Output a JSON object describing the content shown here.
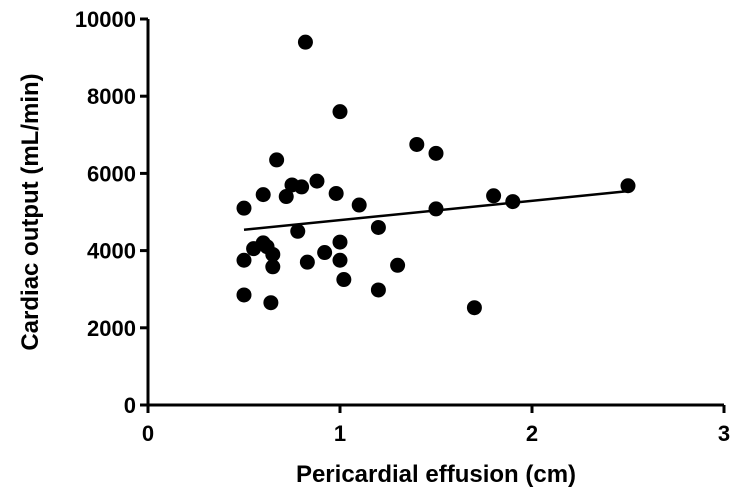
{
  "chart_data": {
    "type": "scatter",
    "title": "",
    "xlabel": "Pericardial effusion (cm)",
    "ylabel": "Cardiac output (mL/min)",
    "xlim": [
      0,
      3
    ],
    "ylim": [
      0,
      10000
    ],
    "xticks": [
      "0",
      "1",
      "2",
      "3"
    ],
    "yticks": [
      "0",
      "2000",
      "4000",
      "6000",
      "8000",
      "10000"
    ],
    "grid": false,
    "points": [
      {
        "x": 0.5,
        "y": 5100
      },
      {
        "x": 0.5,
        "y": 3750
      },
      {
        "x": 0.5,
        "y": 2850
      },
      {
        "x": 0.55,
        "y": 4050
      },
      {
        "x": 0.6,
        "y": 5450
      },
      {
        "x": 0.6,
        "y": 4200
      },
      {
        "x": 0.62,
        "y": 4100
      },
      {
        "x": 0.64,
        "y": 2650
      },
      {
        "x": 0.65,
        "y": 3900
      },
      {
        "x": 0.65,
        "y": 3580
      },
      {
        "x": 0.67,
        "y": 6350
      },
      {
        "x": 0.72,
        "y": 5400
      },
      {
        "x": 0.75,
        "y": 5700
      },
      {
        "x": 0.78,
        "y": 4500
      },
      {
        "x": 0.8,
        "y": 5650
      },
      {
        "x": 0.82,
        "y": 9400
      },
      {
        "x": 0.83,
        "y": 3700
      },
      {
        "x": 0.88,
        "y": 5800
      },
      {
        "x": 0.92,
        "y": 3950
      },
      {
        "x": 0.98,
        "y": 5480
      },
      {
        "x": 1.0,
        "y": 7600
      },
      {
        "x": 1.0,
        "y": 4220
      },
      {
        "x": 1.0,
        "y": 3750
      },
      {
        "x": 1.02,
        "y": 3250
      },
      {
        "x": 1.1,
        "y": 5180
      },
      {
        "x": 1.2,
        "y": 4600
      },
      {
        "x": 1.2,
        "y": 2980
      },
      {
        "x": 1.3,
        "y": 3620
      },
      {
        "x": 1.4,
        "y": 6750
      },
      {
        "x": 1.5,
        "y": 6520
      },
      {
        "x": 1.5,
        "y": 5080
      },
      {
        "x": 1.7,
        "y": 2520
      },
      {
        "x": 1.8,
        "y": 5420
      },
      {
        "x": 1.9,
        "y": 5270
      },
      {
        "x": 2.5,
        "y": 5680
      }
    ],
    "trendline": {
      "x": [
        0.5,
        2.5
      ],
      "y": [
        4540,
        5540
      ]
    }
  }
}
